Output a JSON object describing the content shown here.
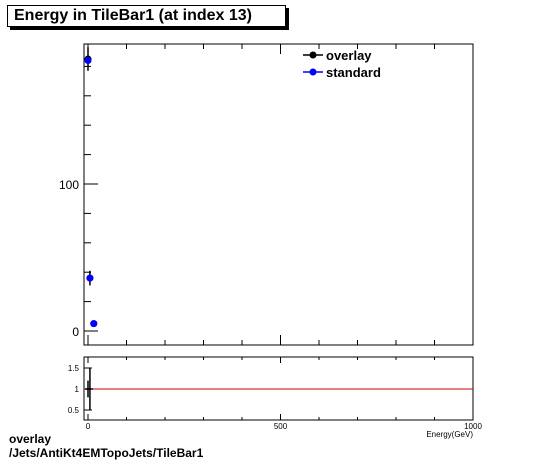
{
  "chart_data": {
    "type": "scatter",
    "title": "Energy in TileBar1 (at index 13)",
    "xlabel": "Energy(GeV)",
    "xlim": [
      0,
      1000
    ],
    "ylim": [
      0,
      200
    ],
    "y_ticks": [
      "0",
      "100"
    ],
    "x_ticks": [
      "0",
      "500",
      "1000"
    ],
    "legend": {
      "placement": "top-right"
    },
    "series": [
      {
        "name": "overlay",
        "color": "#000000",
        "points": [
          {
            "x": 0,
            "y": 185,
            "err": 8
          },
          {
            "x": 5,
            "y": 36,
            "err": 5
          },
          {
            "x": 15,
            "y": 5,
            "err": 1.5
          }
        ]
      },
      {
        "name": "standard",
        "color": "#0000ff",
        "points": [
          {
            "x": 0,
            "y": 184
          },
          {
            "x": 5,
            "y": 36
          },
          {
            "x": 15,
            "y": 5
          }
        ]
      }
    ],
    "ratio": {
      "ylim": [
        0.3,
        1.75
      ],
      "y_ticks": [
        "0.5",
        "1",
        "1.5"
      ],
      "reference": 1,
      "reference_color": "#cc0000",
      "points": [
        {
          "x": 0,
          "y": 1.0,
          "err": 0.2
        },
        {
          "x": 5,
          "y": 1.0,
          "err": 0.5
        }
      ]
    }
  },
  "footer": {
    "line1": "overlay",
    "line2": "/Jets/AntiKt4EMTopoJets/TileBar1"
  }
}
